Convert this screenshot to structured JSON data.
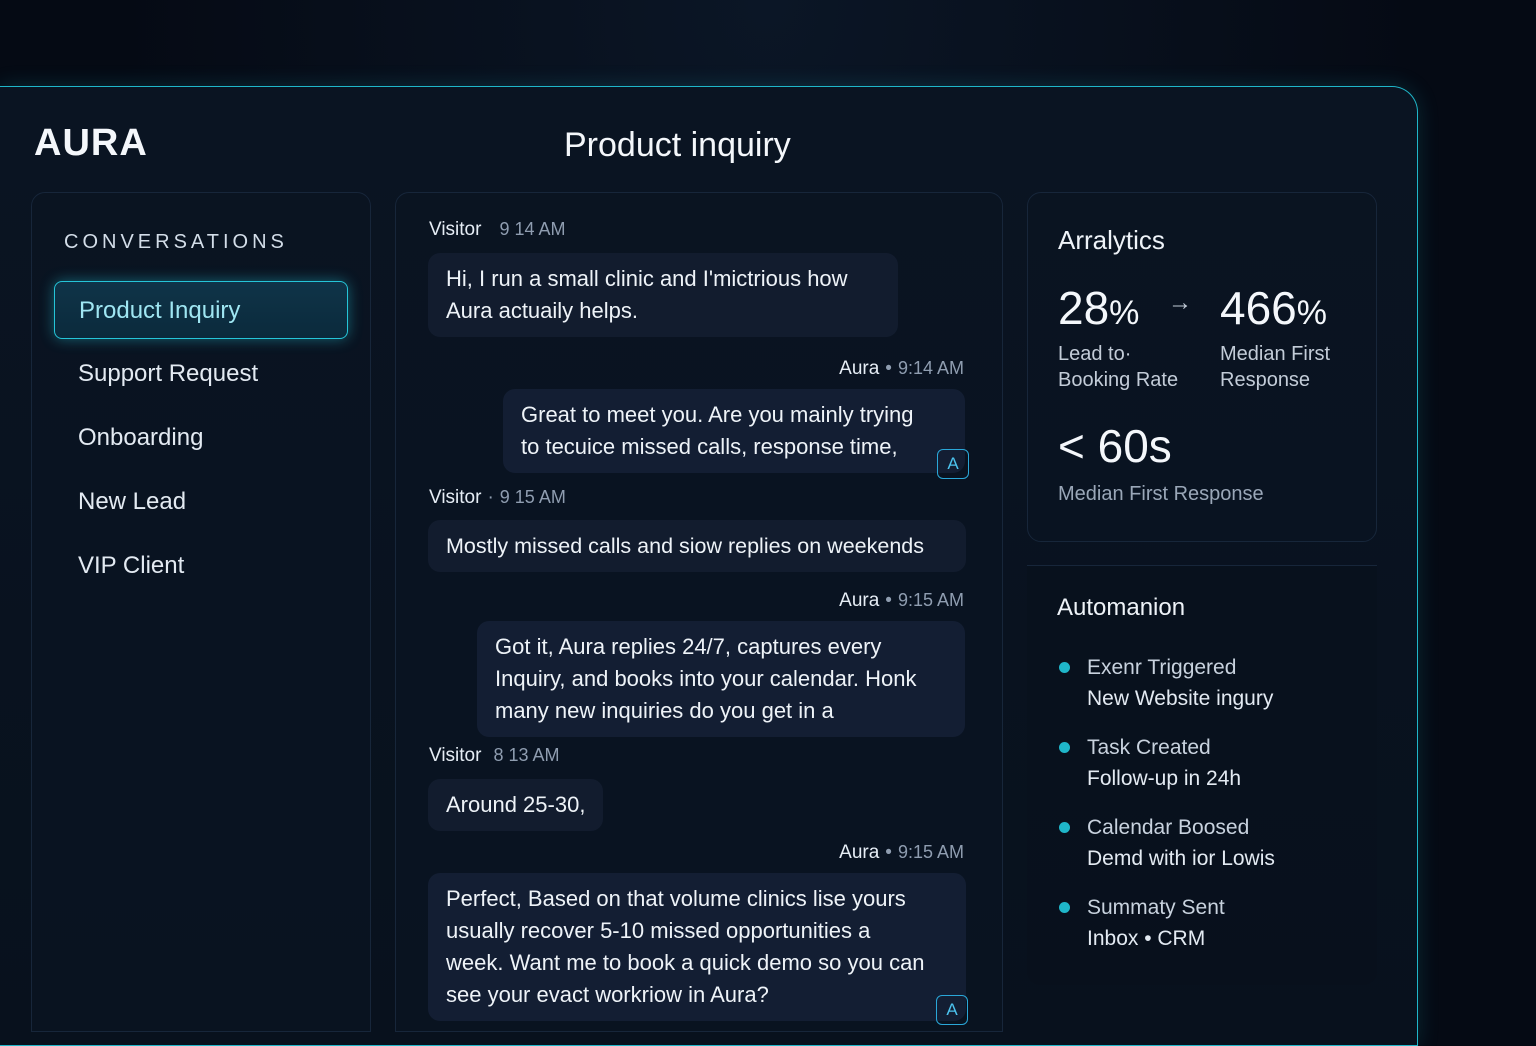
{
  "app": {
    "brand": "AURA",
    "page_title": "Product inquiry"
  },
  "sidebar": {
    "heading": "CONVERSATIONS",
    "items": [
      {
        "label": "Product Inquiry",
        "active": true
      },
      {
        "label": "Support Request"
      },
      {
        "label": "Onboarding"
      },
      {
        "label": "New Lead"
      },
      {
        "label": "VIP Client"
      }
    ]
  },
  "chat": {
    "messages": [
      {
        "sender": "Visitor",
        "time": "9 14 AM",
        "text": "Hi, I run a small clinic and I'mictrious how Aura actuaily helps."
      },
      {
        "sender": "Aura",
        "time": "9:14 AM",
        "text": "Great to meet you. Are you mainly trying to tecuice missed calls, response time,",
        "badge": "A"
      },
      {
        "sender": "Visitor",
        "time": "9 15 AM",
        "text": "Mostly missed calls and siow replies on weekends"
      },
      {
        "sender": "Aura",
        "time": "9:15 AM",
        "text": "Got it, Aura replies 24/7, captures every Inquiry, and books into your calendar. Honk many new inquiries do you get in a"
      },
      {
        "sender": "Visitor",
        "time": "8 13 AM",
        "text": "Around 25-30,"
      },
      {
        "sender": "Aura",
        "time": "9:15 AM",
        "text": "Perfect, Based on that volume clinics lise yours usually recover 5-10 missed opportunities a week. Want me to book a quick demo so you can see your evact workriow in Aura?",
        "badge": "A"
      }
    ]
  },
  "analytics": {
    "title": "Arralytics",
    "stats": [
      {
        "value": "28",
        "unit": "%",
        "label_1": "Lead to·",
        "label_2": "Booking Rate"
      },
      {
        "value": "466",
        "unit": "%",
        "label_1": "Median First",
        "label_2": "Response"
      },
      {
        "value": "< 60s",
        "label": "Median First Response"
      }
    ]
  },
  "automation": {
    "title": "Automanion",
    "items": [
      {
        "label": "Exenr Triggered",
        "detail": "New Website ingury"
      },
      {
        "label": "Task Created",
        "detail": "Follow-up in 24h"
      },
      {
        "label": "Calendar Boosed",
        "detail": "Demd with ior Lowis"
      },
      {
        "label": "Summaty Sent",
        "detail": "Inbox • CRM"
      }
    ]
  },
  "colors": {
    "accent": "#1fb6c9",
    "background": "#050a14",
    "bubble": "#121c2e"
  }
}
